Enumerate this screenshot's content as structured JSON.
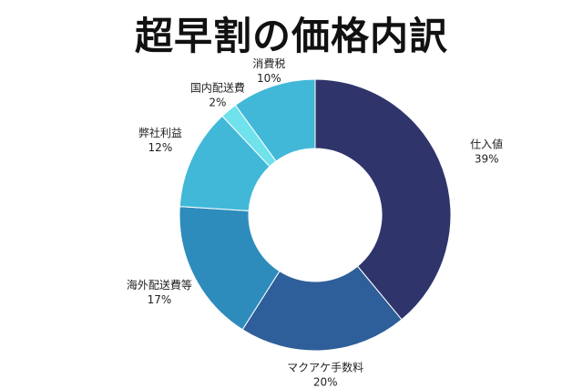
{
  "chart_data": {
    "type": "pie",
    "donut": true,
    "title": "超早割の価格内訳",
    "slices": [
      {
        "label": "仕入値",
        "value": 39,
        "value_label": "39%",
        "color": "#2f346b"
      },
      {
        "label": "マクアケ手数料",
        "value": 20,
        "value_label": "20%",
        "color": "#2e5f9a"
      },
      {
        "label": "海外配送費等",
        "value": 17,
        "value_label": "17%",
        "color": "#2e8cbd"
      },
      {
        "label": "弊社利益",
        "value": 12,
        "value_label": "12%",
        "color": "#41b8d8"
      },
      {
        "label": "国内配送費",
        "value": 2,
        "value_label": "2%",
        "color": "#6fe2ec"
      },
      {
        "label": "消費税",
        "value": 10,
        "value_label": "10%",
        "color": "#41b8d8"
      }
    ],
    "start": "top",
    "direction": "clockwise",
    "legend": "none"
  }
}
